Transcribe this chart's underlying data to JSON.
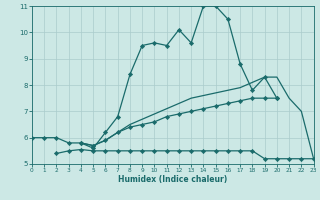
{
  "xlabel": "Humidex (Indice chaleur)",
  "background_color": "#cce8e5",
  "grid_color": "#aacccc",
  "line_color": "#1a6b6b",
  "xlim": [
    0,
    23
  ],
  "ylim": [
    5,
    11
  ],
  "yticks": [
    5,
    6,
    7,
    8,
    9,
    10,
    11
  ],
  "xticks": [
    0,
    1,
    2,
    3,
    4,
    5,
    6,
    7,
    8,
    9,
    10,
    11,
    12,
    13,
    14,
    15,
    16,
    17,
    18,
    19,
    20,
    21,
    22,
    23
  ],
  "series": [
    {
      "x": [
        0,
        1,
        2,
        3,
        4,
        5,
        6,
        7,
        8,
        9,
        10,
        11,
        12,
        13,
        14,
        15,
        16,
        17,
        18,
        19,
        20
      ],
      "y": [
        6.0,
        6.0,
        6.0,
        5.8,
        5.8,
        5.6,
        6.2,
        6.8,
        8.4,
        9.5,
        9.6,
        9.5,
        10.1,
        9.6,
        11.0,
        11.0,
        10.5,
        8.8,
        7.8,
        8.3,
        7.5
      ],
      "marker": "D",
      "markersize": 2.2,
      "linewidth": 0.9
    },
    {
      "x": [
        2,
        3,
        4,
        5,
        6,
        7,
        8,
        9,
        10,
        11,
        12,
        13,
        14,
        15,
        16,
        17,
        18,
        19,
        20,
        21,
        22,
        23
      ],
      "y": [
        5.4,
        5.5,
        5.55,
        5.5,
        5.5,
        5.5,
        5.5,
        5.5,
        5.5,
        5.5,
        5.5,
        5.5,
        5.5,
        5.5,
        5.5,
        5.5,
        5.5,
        5.2,
        5.2,
        5.2,
        5.2,
        5.2
      ],
      "marker": "D",
      "markersize": 2.2,
      "linewidth": 0.9
    },
    {
      "x": [
        4,
        5,
        6,
        7,
        8,
        9,
        10,
        11,
        12,
        13,
        14,
        15,
        16,
        17,
        18,
        19,
        20
      ],
      "y": [
        5.8,
        5.7,
        5.9,
        6.2,
        6.4,
        6.5,
        6.6,
        6.8,
        6.9,
        7.0,
        7.1,
        7.2,
        7.3,
        7.4,
        7.5,
        7.5,
        7.5
      ],
      "marker": "D",
      "markersize": 2.2,
      "linewidth": 0.9
    },
    {
      "x": [
        4,
        5,
        6,
        7,
        8,
        9,
        10,
        11,
        12,
        13,
        14,
        15,
        16,
        17,
        18,
        19,
        20,
        21,
        22,
        23
      ],
      "y": [
        5.8,
        5.7,
        5.9,
        6.2,
        6.5,
        6.7,
        6.9,
        7.1,
        7.3,
        7.5,
        7.6,
        7.7,
        7.8,
        7.9,
        8.1,
        8.3,
        8.3,
        7.5,
        7.0,
        5.2
      ],
      "marker": null,
      "markersize": 0,
      "linewidth": 0.9
    }
  ]
}
